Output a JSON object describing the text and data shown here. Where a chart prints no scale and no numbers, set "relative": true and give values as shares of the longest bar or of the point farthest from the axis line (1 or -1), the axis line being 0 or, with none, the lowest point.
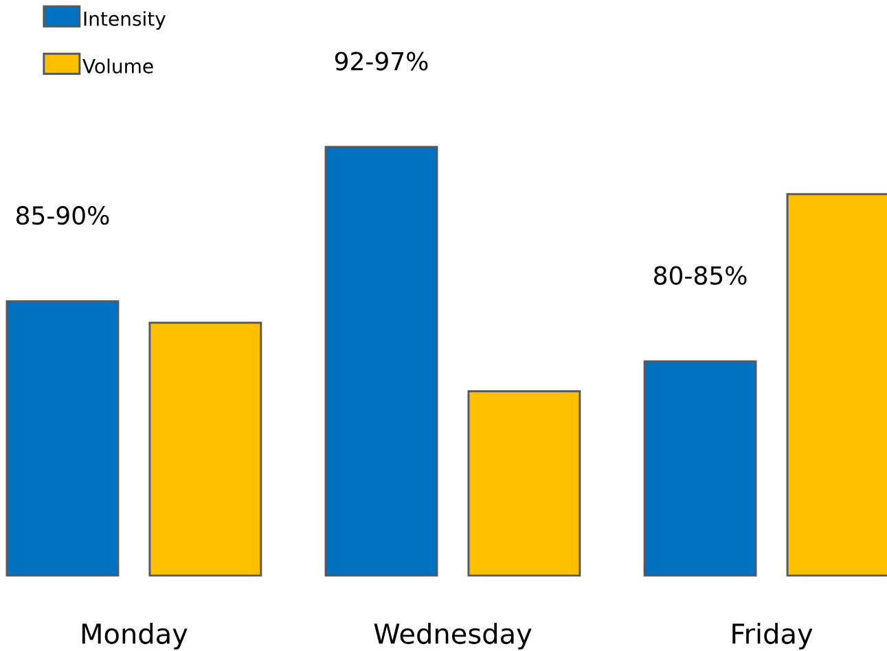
{
  "chart_data": {
    "type": "bar",
    "relative": true,
    "legend": "top left",
    "categories": [
      "Monday",
      "Wednesday",
      "Friday"
    ],
    "series": [
      {
        "name": "Intensity",
        "color": "#0070c0",
        "values": [
          0.64,
          1,
          0.5
        ]
      },
      {
        "name": "Volume",
        "color": "#ffc000",
        "values": [
          0.59,
          0.43,
          0.89
        ]
      }
    ],
    "annotations": [
      "85-90%",
      "92-97%",
      "80-85%"
    ]
  }
}
